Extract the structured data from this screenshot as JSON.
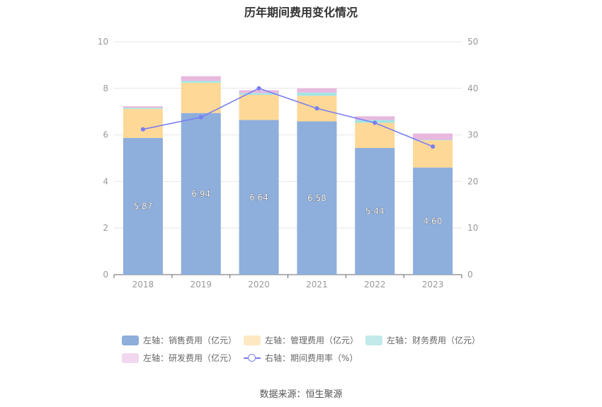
{
  "chart_data": {
    "type": "bar",
    "title": "历年期间费用变化情况",
    "categories": [
      "2018",
      "2019",
      "2020",
      "2021",
      "2022",
      "2023"
    ],
    "series": [
      {
        "name": "左轴：销售费用（亿元）",
        "type": "bar",
        "stack": true,
        "color": "#8eaedc",
        "values": [
          5.87,
          6.94,
          6.64,
          6.58,
          5.44,
          4.6
        ],
        "labels": [
          "5.87",
          "6.94",
          "6.64",
          "6.58",
          "5.44",
          "4.60"
        ]
      },
      {
        "name": "左轴：管理费用（亿元）",
        "type": "bar",
        "stack": true,
        "color": "#fed897",
        "values": [
          1.25,
          1.3,
          1.08,
          1.1,
          1.08,
          1.17
        ]
      },
      {
        "name": "左轴：财务费用（亿元）",
        "type": "bar",
        "stack": true,
        "color": "#a4e4e4",
        "values": [
          0.05,
          0.08,
          0.08,
          0.14,
          0.12,
          0.02
        ]
      },
      {
        "name": "左轴：研发费用（亿元）",
        "type": "bar",
        "stack": true,
        "color": "#e8b8de",
        "values": [
          0.06,
          0.2,
          0.12,
          0.18,
          0.16,
          0.27
        ]
      },
      {
        "name": "右轴：期间费用率（%）",
        "type": "line",
        "axis": "right",
        "color": "#7b7ff0",
        "values": [
          31.2,
          33.8,
          40.0,
          35.7,
          32.6,
          27.5
        ]
      }
    ],
    "left_axis": {
      "ylim": [
        0,
        10
      ],
      "ticks": [
        "0",
        "2",
        "4",
        "6",
        "8",
        "10"
      ]
    },
    "right_axis": {
      "ylim": [
        0,
        50
      ],
      "ticks": [
        "0",
        "10",
        "20",
        "30",
        "40",
        "50"
      ]
    },
    "grid": true,
    "legend_position": "bottom",
    "legend_swatch_colors": [
      "#8eaedc",
      "#fde8c2",
      "#c2eaea",
      "#f2d8ee",
      "#7b7ff0"
    ]
  },
  "source": "数据来源：恒生聚源"
}
